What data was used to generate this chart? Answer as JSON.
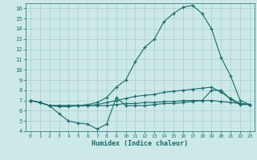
{
  "xlabel": "Humidex (Indice chaleur)",
  "bg_color": "#cce9e8",
  "grid_color": "#aacfcd",
  "line_color": "#1a6b6b",
  "xlim": [
    -0.5,
    23.5
  ],
  "ylim": [
    4,
    16.5
  ],
  "yticks": [
    4,
    5,
    6,
    7,
    8,
    9,
    10,
    11,
    12,
    13,
    14,
    15,
    16
  ],
  "xticks": [
    0,
    1,
    2,
    3,
    4,
    5,
    6,
    7,
    8,
    9,
    10,
    11,
    12,
    13,
    14,
    15,
    16,
    17,
    18,
    19,
    20,
    21,
    22,
    23
  ],
  "line1_x": [
    0,
    1,
    2,
    3,
    4,
    5,
    6,
    7,
    8,
    9,
    10,
    11,
    12,
    13,
    14,
    15,
    16,
    17,
    18,
    19,
    20,
    21,
    22,
    23
  ],
  "line1_y": [
    7.0,
    6.8,
    6.5,
    6.5,
    6.5,
    6.5,
    6.6,
    6.8,
    7.3,
    8.3,
    9.0,
    10.8,
    12.2,
    13.0,
    14.7,
    15.5,
    16.1,
    16.3,
    15.5,
    14.0,
    11.2,
    9.4,
    7.0,
    6.6
  ],
  "line2_x": [
    0,
    1,
    2,
    3,
    4,
    5,
    6,
    7,
    8,
    9,
    10,
    11,
    12,
    13,
    14,
    15,
    16,
    17,
    18,
    19,
    20,
    21,
    22,
    23
  ],
  "line2_y": [
    7.0,
    6.8,
    6.5,
    5.7,
    5.0,
    4.8,
    4.7,
    4.2,
    4.7,
    7.3,
    6.5,
    6.5,
    6.5,
    6.6,
    6.7,
    6.7,
    6.8,
    6.9,
    7.0,
    8.0,
    8.0,
    7.1,
    6.6,
    6.6
  ],
  "line3_x": [
    0,
    1,
    2,
    3,
    4,
    5,
    6,
    7,
    8,
    9,
    10,
    11,
    12,
    13,
    14,
    15,
    16,
    17,
    18,
    19,
    20,
    21,
    22,
    23
  ],
  "line3_y": [
    7.0,
    6.8,
    6.5,
    6.4,
    6.4,
    6.5,
    6.5,
    6.6,
    6.8,
    7.0,
    7.2,
    7.4,
    7.5,
    7.6,
    7.8,
    7.9,
    8.0,
    8.1,
    8.2,
    8.3,
    7.8,
    7.2,
    6.7,
    6.6
  ],
  "line4_x": [
    0,
    1,
    2,
    3,
    4,
    5,
    6,
    7,
    8,
    9,
    10,
    11,
    12,
    13,
    14,
    15,
    16,
    17,
    18,
    19,
    20,
    21,
    22,
    23
  ],
  "line4_y": [
    7.0,
    6.8,
    6.5,
    6.5,
    6.5,
    6.5,
    6.5,
    6.5,
    6.5,
    6.6,
    6.7,
    6.7,
    6.8,
    6.8,
    6.9,
    6.9,
    7.0,
    7.0,
    7.0,
    7.0,
    6.9,
    6.8,
    6.7,
    6.6
  ]
}
